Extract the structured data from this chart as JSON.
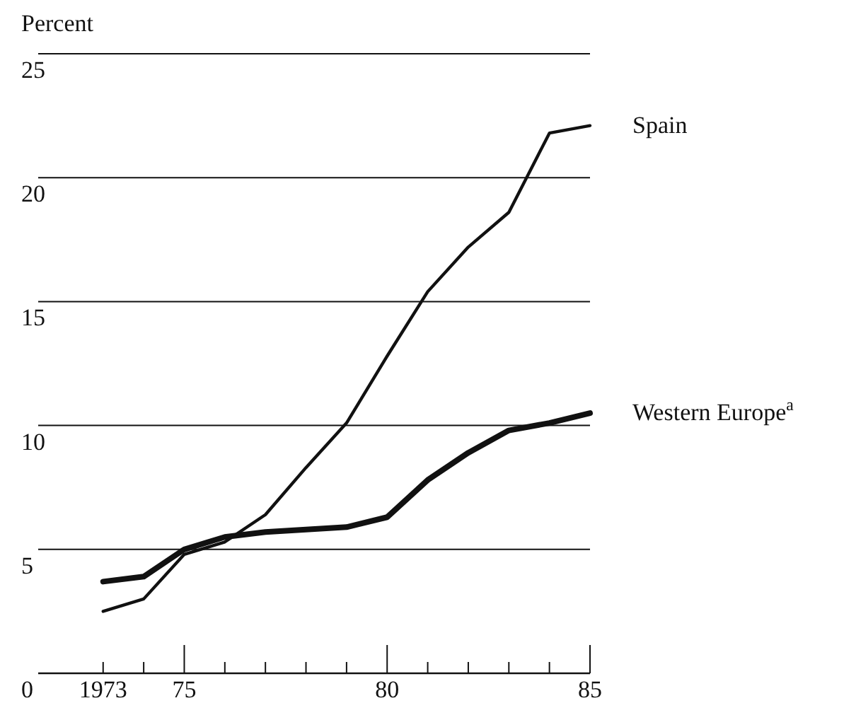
{
  "chart_data": {
    "type": "line",
    "ylabel": "Percent",
    "x": [
      1973,
      1974,
      1975,
      1976,
      1977,
      1978,
      1979,
      1980,
      1981,
      1982,
      1983,
      1984,
      1985
    ],
    "series": [
      {
        "name": "Spain",
        "color": "#111111",
        "values": [
          2.5,
          3.0,
          4.8,
          5.3,
          6.4,
          8.3,
          10.1,
          12.8,
          15.4,
          17.2,
          18.6,
          21.8,
          22.1
        ]
      },
      {
        "name": "Western Europe$^{a}$",
        "color": "#111111",
        "values": [
          3.7,
          3.9,
          5.0,
          5.5,
          5.7,
          5.8,
          5.9,
          6.3,
          7.8,
          8.9,
          9.8,
          10.1,
          10.5
        ]
      }
    ],
    "xlim": [
      1971.4,
      1985
    ],
    "xticks": [
      1973,
      {
        "value": 1974,
        "label": null
      },
      {
        "value": 1975,
        "label": "75"
      },
      {
        "value": 1976,
        "label": null
      },
      {
        "value": 1977,
        "label": null
      },
      {
        "value": 1978,
        "label": null
      },
      {
        "value": 1979,
        "label": null
      },
      {
        "value": 1980,
        "label": "80"
      },
      {
        "value": 1981,
        "label": null
      },
      {
        "value": 1982,
        "label": null
      },
      {
        "value": 1983,
        "label": null
      },
      {
        "value": 1984,
        "label": null
      },
      {
        "value": 1985,
        "label": "85"
      }
    ],
    "ylim": [
      0,
      25
    ],
    "yticks": [
      0,
      5,
      10,
      15,
      20,
      25
    ],
    "grid": "y",
    "legend": false,
    "marker": "none",
    "line_style": "solid"
  }
}
